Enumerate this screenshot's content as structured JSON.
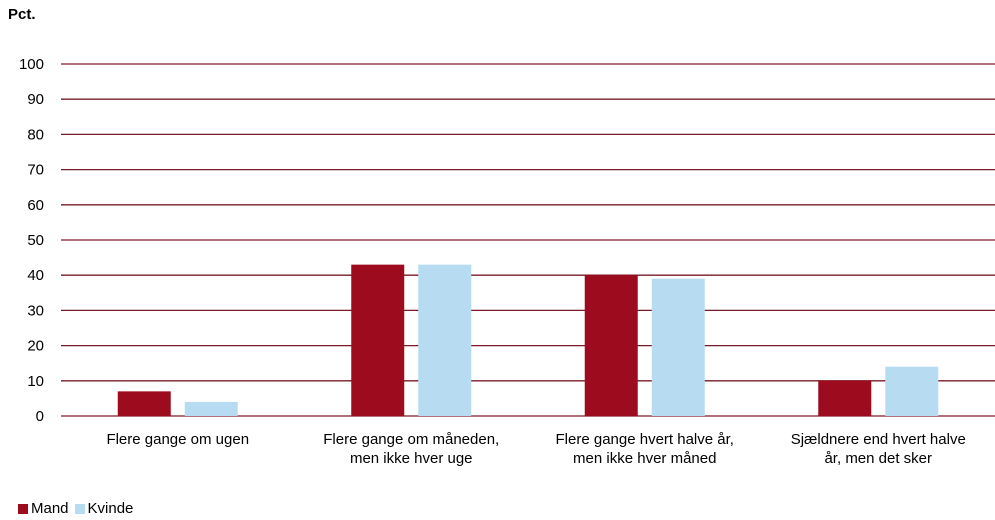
{
  "chart_data": {
    "type": "bar",
    "ylabel": "Pct.",
    "ylim": [
      0,
      100
    ],
    "yticks": [
      "0",
      "10",
      "20",
      "30",
      "40",
      "50",
      "60",
      "70",
      "80",
      "90",
      "100"
    ],
    "categories": [
      [
        "Flere gange om ugen"
      ],
      [
        "Flere gange om måneden,",
        "men ikke hver uge"
      ],
      [
        "Flere gange hvert halve år,",
        "men ikke hver måned"
      ],
      [
        "Sjældnere end hvert halve",
        "år, men det sker"
      ]
    ],
    "series": [
      {
        "name": "Mand",
        "color": "#9c0c1e",
        "values": [
          7,
          43,
          40,
          10
        ]
      },
      {
        "name": "Kvinde",
        "color": "#b7dcf1",
        "values": [
          4,
          43,
          39,
          14
        ]
      }
    ],
    "gridline_color": "#7a1a24",
    "legend_position": "bottom-left"
  }
}
